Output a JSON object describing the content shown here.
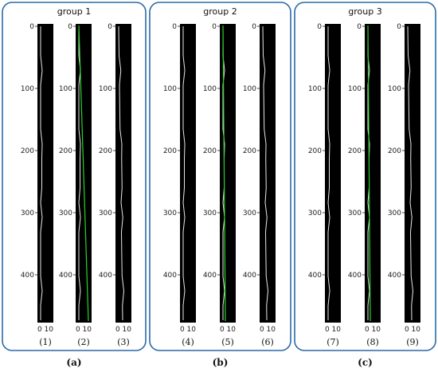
{
  "groups": [
    {
      "title": "group 1",
      "label": "(a)",
      "panels": [
        {
          "label": "(1)",
          "yticks": [
            "0",
            "100",
            "200",
            "300",
            "400"
          ],
          "xticks": "0 10"
        },
        {
          "label": "(2)",
          "yticks": [
            "0",
            "100",
            "200",
            "300",
            "400"
          ],
          "xticks": "0 10"
        },
        {
          "label": "(3)",
          "yticks": [
            "0",
            "100",
            "200",
            "300",
            "400"
          ],
          "xticks": "0 10"
        }
      ]
    },
    {
      "title": "group 2",
      "label": "(b)",
      "panels": [
        {
          "label": "(4)",
          "yticks": [
            "0",
            "100",
            "200",
            "300",
            "400"
          ],
          "xticks": "0 10"
        },
        {
          "label": "(5)",
          "yticks": [
            "0",
            "100",
            "200",
            "300",
            "400"
          ],
          "xticks": "0 10"
        },
        {
          "label": "(6)",
          "yticks": [
            "0",
            "100",
            "200",
            "300",
            "400"
          ],
          "xticks": "0 10"
        }
      ]
    },
    {
      "title": "group 3",
      "label": "(c)",
      "panels": [
        {
          "label": "(7)",
          "yticks": [
            "0",
            "100",
            "200",
            "300",
            "400"
          ],
          "xticks": "0 10"
        },
        {
          "label": "(8)",
          "yticks": [
            "0",
            "100",
            "200",
            "300",
            "400"
          ],
          "xticks": "0 10"
        },
        {
          "label": "(9)",
          "yticks": [
            "0",
            "100",
            "200",
            "300",
            "400"
          ],
          "xticks": "0 10"
        }
      ]
    }
  ]
}
